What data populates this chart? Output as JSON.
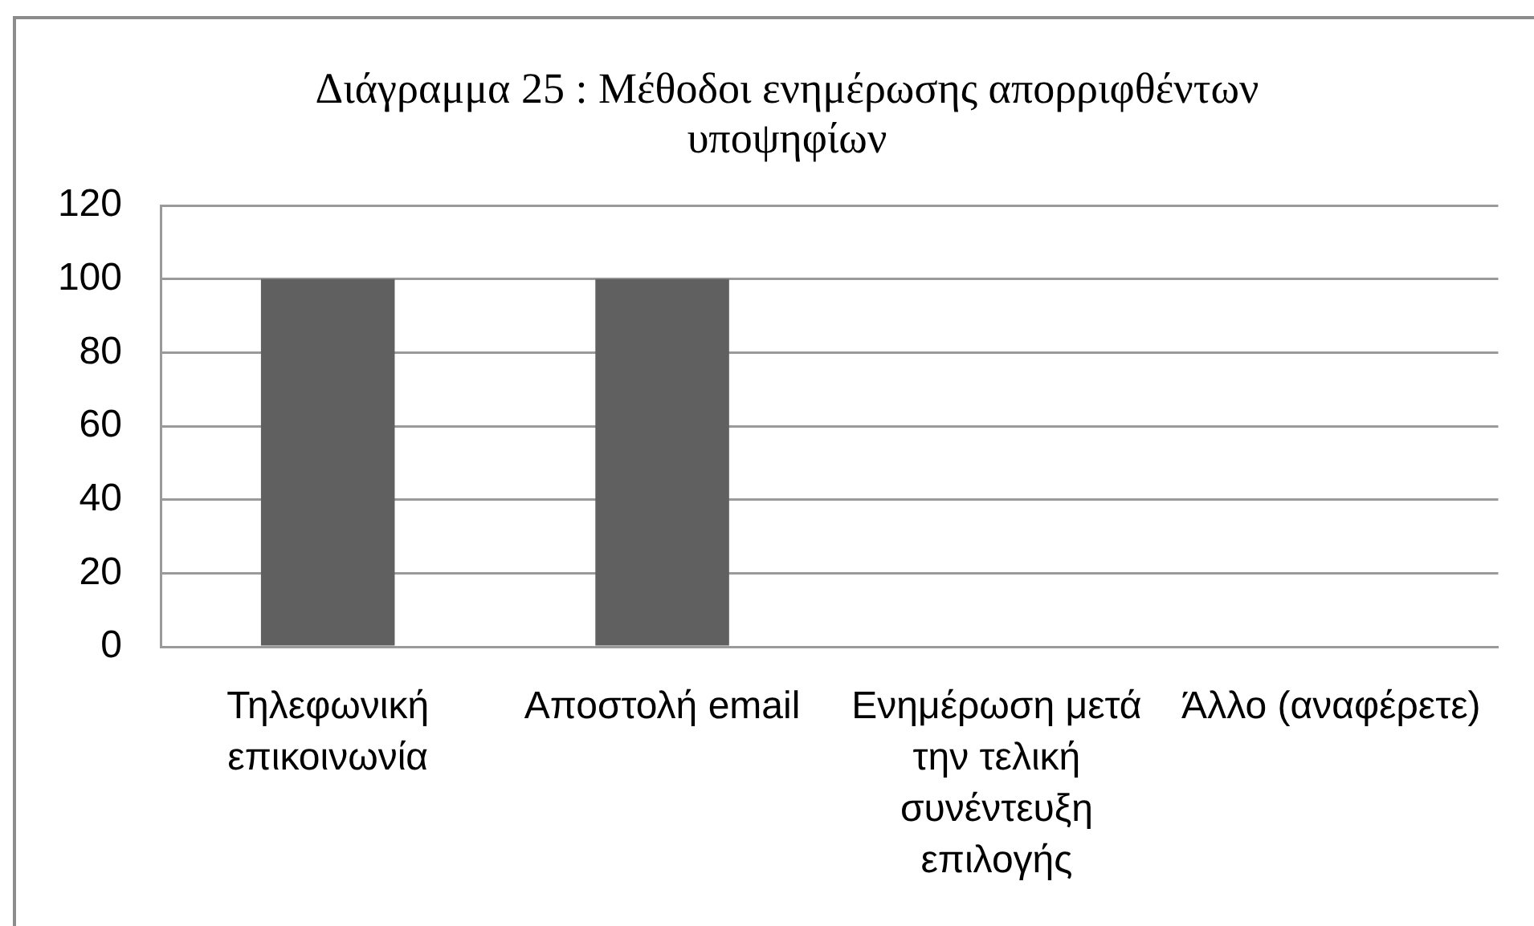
{
  "chart_data": {
    "type": "bar",
    "title": "Διάγραμμα 25 : Μέθοδοι ενημέρωσης απορριφθέντων υποψηφίων",
    "categories": [
      "Τηλεφωνική επικοινωνία",
      "Αποστολή email",
      "Ενημέρωση μετά την τελική συνέντευξη επιλογής",
      "Άλλο (αναφέρετε)"
    ],
    "values": [
      100,
      100,
      0,
      0
    ],
    "color": "#606060",
    "ylim": [
      0,
      120
    ],
    "yticks": [
      0,
      20,
      40,
      60,
      80,
      100,
      120
    ],
    "grid": "y"
  }
}
